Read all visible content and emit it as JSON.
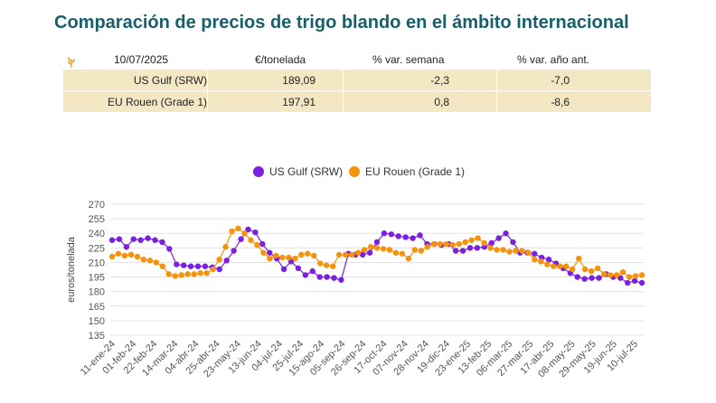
{
  "title": "Comparación de precios de trigo blando en el ámbito internacional",
  "table": {
    "headers": [
      "10/07/2025",
      "€/tonelada",
      "% var. semana",
      "% var. año ant."
    ],
    "rows": [
      [
        "US Gulf (SRW)",
        "189,09",
        "-2,3",
        "-7,0"
      ],
      [
        "EU Rouen (Grade 1)",
        "197,91",
        "0,8",
        "-8,6"
      ]
    ],
    "row_color": "#f3e7c4",
    "icon": "wheat-icon"
  },
  "chart_data": {
    "type": "line",
    "ylabel": "euros/tonelada",
    "xlabel": "",
    "ylim": [
      135,
      270
    ],
    "yticks": [
      135,
      150,
      165,
      180,
      195,
      210,
      225,
      240,
      255,
      270
    ],
    "legend_position": "top",
    "x_tick_labels": [
      "11-ene-24",
      "01-feb-24",
      "22-feb-24",
      "14-mar-24",
      "04-abr-24",
      "25-abr-24",
      "23-may-24",
      "13-jun-24",
      "04-jul-24",
      "25-jul-24",
      "15-ago-24",
      "05-sep-24",
      "26-sep-24",
      "17-oct-24",
      "07-nov-24",
      "28-nov-24",
      "19-dic-24",
      "23-ene-25",
      "13-feb-25",
      "06-mar-25",
      "27-mar-25",
      "17-abr-25",
      "08-may-25",
      "29-may-25",
      "19-jun-25",
      "10-jul-25"
    ],
    "series": [
      {
        "name": "US Gulf (SRW)",
        "color": "#7b1fe0",
        "values": [
          233,
          234,
          226,
          234,
          233,
          235,
          233,
          231,
          224,
          208,
          207,
          206,
          206,
          206,
          205,
          203,
          212,
          222,
          234,
          244,
          241,
          229,
          220,
          214,
          203,
          211,
          204,
          197,
          201,
          195,
          195,
          194,
          192,
          219,
          218,
          218,
          220,
          231,
          240,
          239,
          237,
          236,
          235,
          238,
          229,
          229,
          228,
          229,
          222,
          222,
          225,
          225,
          226,
          230,
          235,
          240,
          231,
          220,
          220,
          219,
          215,
          213,
          209,
          204,
          199,
          195,
          193,
          194,
          194,
          198,
          195,
          194,
          189,
          191,
          189
        ],
        "end_label": "189,09"
      },
      {
        "name": "EU Rouen (Grade 1)",
        "color": "#f5930f",
        "values": [
          216,
          219,
          217,
          218,
          216,
          213,
          212,
          210,
          206,
          198,
          196,
          197,
          198,
          198,
          199,
          199,
          203,
          213,
          226,
          242,
          245,
          240,
          233,
          228,
          220,
          214,
          217,
          215,
          215,
          214,
          218,
          219,
          217,
          209,
          207,
          206,
          218,
          218,
          218,
          220,
          223,
          226,
          225,
          224,
          223,
          220,
          219,
          214,
          223,
          222,
          226,
          229,
          229,
          229,
          228,
          229,
          231,
          233,
          235,
          230,
          225,
          223,
          223,
          221,
          222,
          222,
          220,
          213,
          211,
          208,
          206,
          206,
          206,
          203,
          214,
          203,
          201,
          204,
          198,
          197,
          197,
          200,
          195,
          196,
          197
        ],
        "end_label": "197,91"
      }
    ]
  }
}
